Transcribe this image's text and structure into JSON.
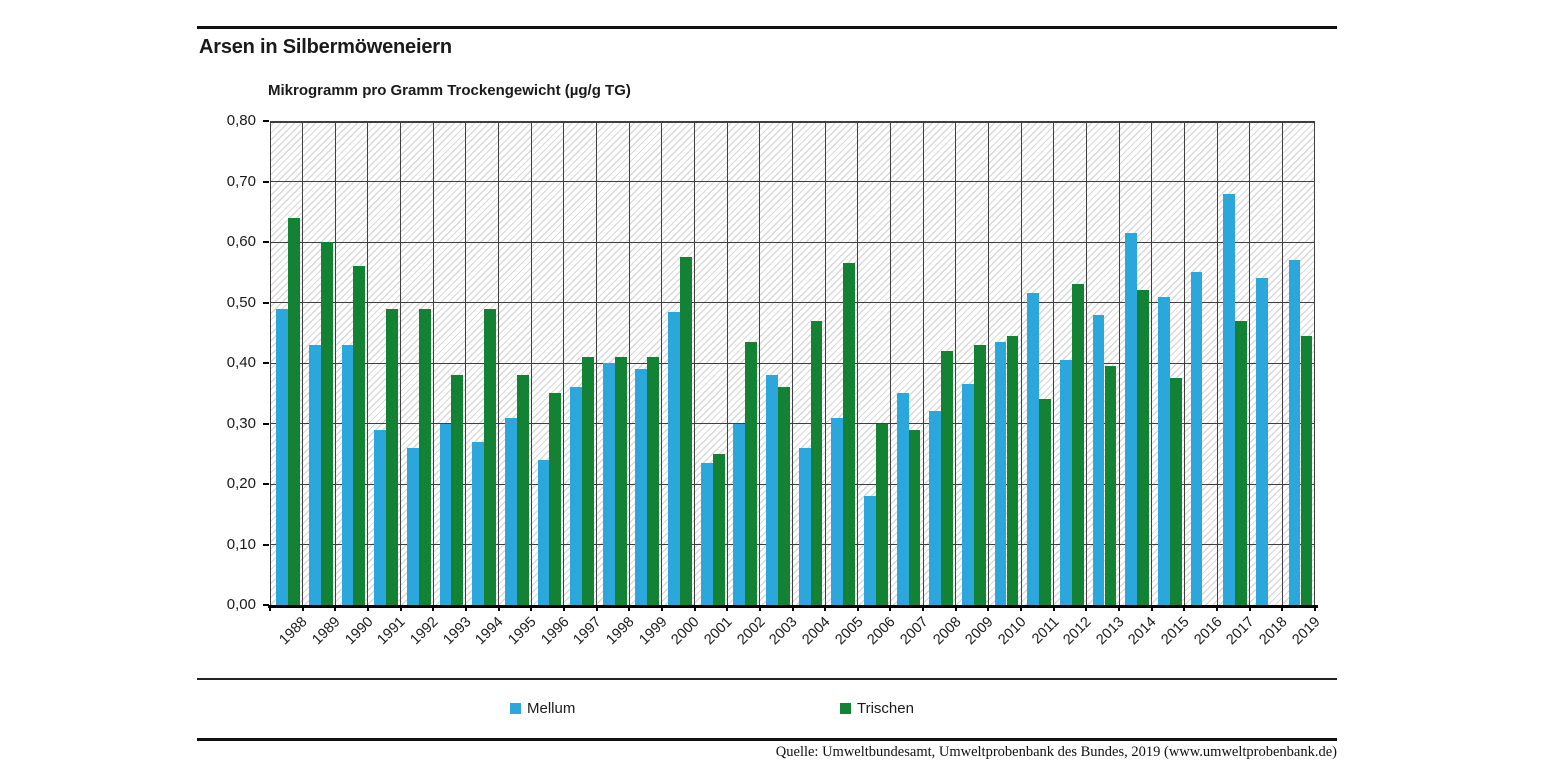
{
  "header": {
    "title": "Arsen in Silbermöweneiern"
  },
  "chart_data": {
    "type": "bar",
    "title": "Arsen in Silbermöweneiern",
    "axis_title": "Mikrogramm pro Gramm Trockengewicht (µg/g TG)",
    "categories": [
      "1988",
      "1989",
      "1990",
      "1991",
      "1992",
      "1993",
      "1994",
      "1995",
      "1996",
      "1997",
      "1998",
      "1999",
      "2000",
      "2001",
      "2002",
      "2003",
      "2004",
      "2005",
      "2006",
      "2007",
      "2008",
      "2009",
      "2010",
      "2011",
      "2012",
      "2013",
      "2014",
      "2015",
      "2016",
      "2017",
      "2018",
      "2019"
    ],
    "series": [
      {
        "name": "Mellum",
        "color": "#2BA7DC",
        "values": [
          0.49,
          0.43,
          0.43,
          0.29,
          0.26,
          0.3,
          0.27,
          0.31,
          0.24,
          0.36,
          0.4,
          0.39,
          0.485,
          0.235,
          0.3,
          0.38,
          0.26,
          0.31,
          0.18,
          0.35,
          0.32,
          0.365,
          0.435,
          0.515,
          0.405,
          0.48,
          0.615,
          0.51,
          0.55,
          0.68,
          0.54,
          0.57
        ]
      },
      {
        "name": "Trischen",
        "color": "#148235",
        "values": [
          0.64,
          0.6,
          0.56,
          0.49,
          0.49,
          0.38,
          0.49,
          0.38,
          0.35,
          0.41,
          0.41,
          0.41,
          0.575,
          0.25,
          0.435,
          0.36,
          0.47,
          0.565,
          0.3,
          0.29,
          0.42,
          0.43,
          0.445,
          0.34,
          0.53,
          0.395,
          0.52,
          0.375,
          null,
          0.47,
          null,
          0.445
        ]
      }
    ],
    "ylim": [
      0,
      0.8
    ],
    "yticks": [
      0,
      0.1,
      0.2,
      0.3,
      0.4,
      0.5,
      0.6,
      0.7,
      0.8
    ],
    "ytick_labels": [
      "0,00",
      "0,10",
      "0,20",
      "0,30",
      "0,40",
      "0,50",
      "0,60",
      "0,70",
      "0,80"
    ],
    "grid": "both",
    "grid_color": "#3f3f3f",
    "hatch_color": "#d9d9d9",
    "legend_position": "bottom"
  },
  "footer": {
    "source": "Quelle: Umweltbundesamt, Umweltprobenbank des Bundes, 2019 (www.umweltprobenbank.de)"
  }
}
